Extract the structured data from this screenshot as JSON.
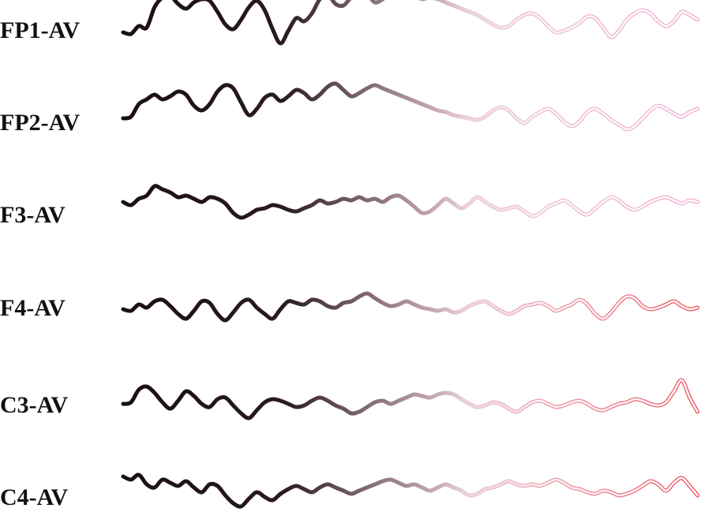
{
  "chart_data": {
    "type": "line",
    "title": "",
    "xlabel": "",
    "ylabel": "",
    "grid": false,
    "legend": "none",
    "samples_per_channel": 74,
    "series": [
      {
        "name": "FP1-AV",
        "values": [
          0.2,
          0.1,
          0.6,
          0.5,
          1.8,
          2.4,
          2.5,
          2.0,
          1.7,
          2.1,
          2.3,
          2.2,
          1.5,
          0.7,
          0.4,
          1.0,
          1.8,
          2.2,
          1.6,
          0.4,
          -0.5,
          0.3,
          1.1,
          0.9,
          1.4,
          2.3,
          2.6,
          2.0,
          1.9,
          2.4,
          2.5,
          2.6,
          2.1,
          2.3,
          2.7,
          2.6,
          2.4,
          2.5,
          2.3,
          2.4,
          2.3,
          2.1,
          1.9,
          1.7,
          1.5,
          1.3,
          1.0,
          0.7,
          0.5,
          0.6,
          1.0,
          1.3,
          1.4,
          1.1,
          0.6,
          0.2,
          0.3,
          0.5,
          0.8,
          1.2,
          1.1,
          0.5,
          -0.1,
          0.3,
          1.0,
          1.4,
          1.6,
          1.4,
          0.9,
          0.6,
          0.9,
          1.5,
          1.3,
          1.0
        ]
      },
      {
        "name": "FP2-AV",
        "values": [
          0.0,
          0.1,
          0.9,
          1.2,
          1.5,
          1.2,
          1.4,
          1.7,
          1.5,
          0.8,
          0.5,
          0.9,
          1.7,
          2.1,
          1.9,
          1.0,
          0.2,
          0.6,
          1.3,
          1.5,
          1.1,
          1.4,
          1.8,
          1.6,
          1.2,
          1.5,
          2.0,
          2.2,
          1.8,
          1.4,
          1.6,
          1.9,
          2.1,
          1.9,
          1.7,
          1.5,
          1.3,
          1.1,
          0.9,
          0.7,
          0.5,
          0.4,
          0.2,
          0.1,
          0.0,
          -0.1,
          0.1,
          0.5,
          0.7,
          0.5,
          0.0,
          -0.3,
          0.1,
          0.4,
          0.6,
          0.3,
          -0.2,
          -0.5,
          -0.2,
          0.4,
          0.6,
          0.3,
          -0.1,
          -0.4,
          -0.7,
          -0.5,
          0.0,
          0.5,
          0.8,
          0.6,
          0.3,
          0.1,
          0.4,
          0.6
        ]
      },
      {
        "name": "F3-AV",
        "values": [
          0.3,
          0.1,
          0.5,
          0.7,
          1.3,
          1.1,
          0.9,
          0.6,
          0.7,
          0.5,
          0.3,
          0.6,
          0.5,
          0.2,
          -0.4,
          -0.7,
          -0.5,
          -0.2,
          -0.1,
          0.1,
          0.0,
          -0.2,
          -0.3,
          -0.1,
          0.1,
          0.4,
          0.2,
          0.3,
          0.5,
          0.4,
          0.6,
          0.4,
          0.5,
          0.3,
          0.6,
          0.7,
          0.4,
          0.0,
          -0.4,
          -0.3,
          0.1,
          0.5,
          0.2,
          -0.1,
          0.2,
          0.6,
          0.3,
          0.0,
          -0.2,
          -0.1,
          0.0,
          -0.3,
          -0.6,
          -0.4,
          0.0,
          0.2,
          0.4,
          0.1,
          -0.3,
          -0.5,
          -0.1,
          0.3,
          0.6,
          0.4,
          0.0,
          -0.2,
          0.0,
          0.3,
          0.5,
          0.6,
          0.4,
          0.2,
          0.4,
          0.3
        ]
      },
      {
        "name": "F4-AV",
        "values": [
          0.0,
          -0.1,
          0.3,
          0.1,
          0.5,
          0.6,
          0.2,
          -0.3,
          -0.6,
          -0.1,
          0.5,
          0.4,
          -0.3,
          -0.7,
          -0.2,
          0.4,
          0.6,
          0.1,
          -0.3,
          -0.6,
          0.0,
          0.5,
          0.4,
          0.3,
          0.6,
          0.5,
          0.2,
          0.1,
          0.4,
          0.5,
          0.8,
          1.0,
          0.7,
          0.4,
          0.2,
          0.3,
          0.5,
          0.3,
          0.1,
          0.0,
          -0.1,
          0.0,
          -0.2,
          -0.1,
          0.2,
          0.4,
          0.5,
          0.2,
          -0.1,
          -0.3,
          -0.1,
          0.2,
          0.3,
          0.4,
          0.2,
          -0.1,
          0.1,
          0.3,
          0.6,
          0.3,
          -0.3,
          -0.6,
          -0.2,
          0.4,
          0.8,
          0.7,
          0.2,
          0.0,
          0.1,
          0.3,
          0.5,
          0.2,
          0.0,
          0.1
        ]
      },
      {
        "name": "C3-AV",
        "values": [
          0.0,
          0.1,
          0.9,
          1.1,
          0.7,
          0.1,
          -0.3,
          0.2,
          0.8,
          0.5,
          0.0,
          -0.2,
          0.3,
          0.4,
          -0.1,
          -0.6,
          -0.9,
          -0.4,
          0.1,
          0.3,
          0.2,
          0.0,
          -0.2,
          -0.1,
          0.2,
          0.4,
          0.2,
          -0.1,
          -0.3,
          -0.6,
          -0.5,
          -0.2,
          0.1,
          0.2,
          0.0,
          0.2,
          0.4,
          0.6,
          0.5,
          0.4,
          0.6,
          0.7,
          0.6,
          0.3,
          0.0,
          -0.2,
          -0.1,
          0.1,
          0.0,
          -0.3,
          -0.5,
          -0.2,
          0.1,
          0.2,
          0.0,
          -0.2,
          -0.1,
          0.1,
          0.2,
          0.0,
          -0.3,
          -0.4,
          -0.2,
          0.0,
          0.1,
          0.3,
          0.2,
          0.0,
          -0.1,
          0.1,
          0.8,
          1.5,
          0.4,
          -0.5
        ]
      },
      {
        "name": "C4-AV",
        "values": [
          0.8,
          0.6,
          0.9,
          0.3,
          0.1,
          0.6,
          0.4,
          0.2,
          0.5,
          0.1,
          -0.2,
          0.3,
          0.2,
          -0.4,
          -0.9,
          -1.1,
          -0.6,
          -0.2,
          -0.5,
          -0.7,
          -0.3,
          0.0,
          0.2,
          0.0,
          -0.2,
          0.1,
          0.3,
          0.1,
          -0.1,
          -0.3,
          -0.1,
          0.1,
          0.3,
          0.5,
          0.6,
          0.4,
          0.2,
          0.3,
          0.1,
          -0.1,
          0.1,
          0.3,
          0.1,
          -0.1,
          -0.4,
          -0.3,
          0.0,
          0.1,
          0.3,
          0.5,
          0.3,
          0.2,
          0.3,
          0.2,
          0.4,
          0.6,
          0.4,
          0.1,
          0.0,
          -0.2,
          -0.3,
          -0.1,
          -0.2,
          -0.4,
          -0.3,
          -0.1,
          0.2,
          0.5,
          0.3,
          -0.1,
          0.4,
          0.7,
          0.2,
          -0.4
        ]
      }
    ]
  },
  "trace_colors": {
    "start": "#1a0e14",
    "fade_0": "#2a1a22",
    "fade_1": "#e8c8d6",
    "end_upper": "#f2aacf",
    "end_lower": "#ee4c5a"
  }
}
